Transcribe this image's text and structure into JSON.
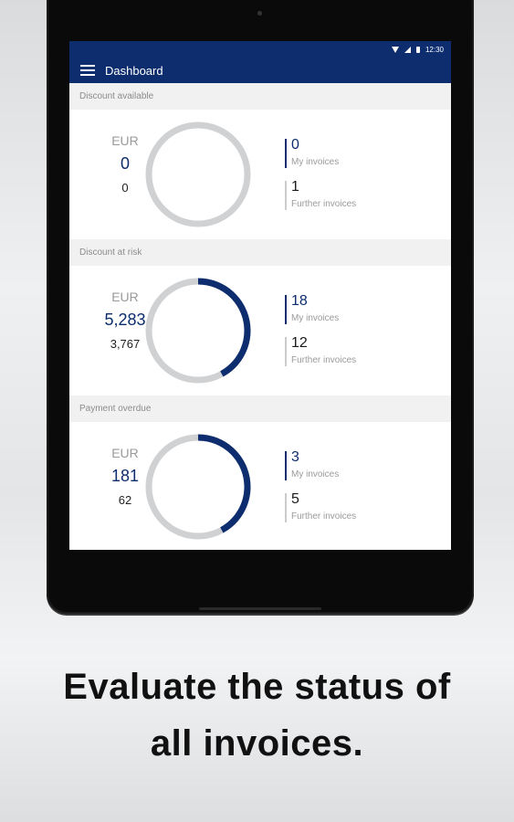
{
  "status_bar": {
    "time": "12:30"
  },
  "app_bar": {
    "title": "Dashboard"
  },
  "sections": [
    {
      "header": "Discount available",
      "currency": "EUR",
      "amount": "0",
      "sub_amount": "0",
      "progress": 0,
      "my_count": "0",
      "my_label": "My invoices",
      "further_count": "1",
      "further_label": "Further invoices"
    },
    {
      "header": "Discount at risk",
      "currency": "EUR",
      "amount": "5,283",
      "sub_amount": "3,767",
      "progress": 0.42,
      "my_count": "18",
      "my_label": "My invoices",
      "further_count": "12",
      "further_label": "Further invoices"
    },
    {
      "header": "Payment overdue",
      "currency": "EUR",
      "amount": "181",
      "sub_amount": "62",
      "progress": 0.42,
      "my_count": "3",
      "my_label": "My invoices",
      "further_count": "5",
      "further_label": "Further invoices"
    }
  ],
  "caption": {
    "line1": "Evaluate the status of",
    "line2": "all invoices."
  },
  "colors": {
    "primary": "#0d2d6e",
    "ring_track": "#cfd1d3",
    "bar_muted": "#cccccc"
  }
}
